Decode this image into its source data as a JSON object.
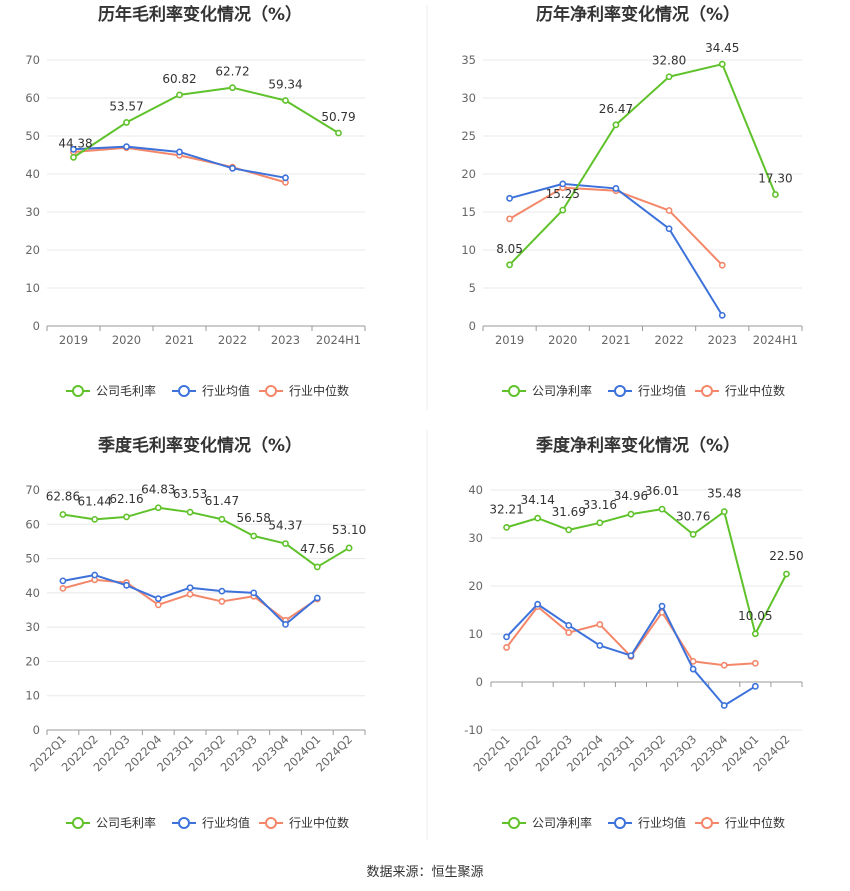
{
  "source": "数据来源：恒生聚源",
  "colors": {
    "company": "#5fc22a",
    "industry_avg": "#3d72db",
    "industry_median": "#f4876a"
  },
  "chart_data": [
    {
      "type": "line",
      "title": "历年毛利率变化情况（%）",
      "categories": [
        "2019",
        "2020",
        "2021",
        "2022",
        "2023",
        "2024H1"
      ],
      "ylim": [
        0,
        70
      ],
      "yticks": [
        0,
        10,
        20,
        30,
        40,
        50,
        60,
        70
      ],
      "grid": true,
      "legend": "bottom",
      "rotate_x": false,
      "series": [
        {
          "name": "公司毛利率",
          "key": "company",
          "values": [
            44.38,
            53.57,
            60.82,
            62.72,
            59.34,
            50.79
          ],
          "labels": [
            "44.38",
            "53.57",
            "60.82",
            "62.72",
            "59.34",
            "50.79"
          ]
        },
        {
          "name": "行业均值",
          "key": "industry_avg",
          "values": [
            46.5,
            47.2,
            45.8,
            41.5,
            39.0,
            null
          ]
        },
        {
          "name": "行业中位数",
          "key": "industry_median",
          "values": [
            45.8,
            46.9,
            44.9,
            41.8,
            37.8,
            null
          ]
        }
      ]
    },
    {
      "type": "line",
      "title": "历年净利率变化情况（%）",
      "categories": [
        "2019",
        "2020",
        "2021",
        "2022",
        "2023",
        "2024H1"
      ],
      "ylim": [
        0,
        35
      ],
      "yticks": [
        0,
        5,
        10,
        15,
        20,
        25,
        30,
        35
      ],
      "grid": true,
      "legend": "bottom",
      "rotate_x": false,
      "series": [
        {
          "name": "公司净利率",
          "key": "company",
          "values": [
            8.05,
            15.25,
            26.47,
            32.8,
            34.45,
            17.3
          ],
          "labels": [
            "8.05",
            "15.25",
            "26.47",
            "32.80",
            "34.45",
            "17.30"
          ]
        },
        {
          "name": "行业均值",
          "key": "industry_avg",
          "values": [
            16.8,
            18.7,
            18.1,
            12.8,
            1.4,
            null
          ]
        },
        {
          "name": "行业中位数",
          "key": "industry_median",
          "values": [
            14.1,
            18.2,
            17.8,
            15.2,
            8.0,
            null
          ]
        }
      ]
    },
    {
      "type": "line",
      "title": "季度毛利率变化情况（%）",
      "categories": [
        "2022Q1",
        "2022Q2",
        "2022Q3",
        "2022Q4",
        "2023Q1",
        "2023Q2",
        "2023Q3",
        "2023Q4",
        "2024Q1",
        "2024Q2"
      ],
      "ylim": [
        0,
        70
      ],
      "yticks": [
        0,
        10,
        20,
        30,
        40,
        50,
        60,
        70
      ],
      "grid": true,
      "legend": "bottom",
      "rotate_x": true,
      "series": [
        {
          "name": "公司毛利率",
          "key": "company",
          "values": [
            62.86,
            61.44,
            62.16,
            64.83,
            63.53,
            61.47,
            56.58,
            54.37,
            47.56,
            53.1
          ],
          "labels": [
            "62.86",
            "61.44",
            "62.16",
            "64.83",
            "63.53",
            "61.47",
            "56.58",
            "54.37",
            "47.56",
            "53.10"
          ]
        },
        {
          "name": "行业均值",
          "key": "industry_avg",
          "values": [
            43.5,
            45.2,
            42.2,
            38.3,
            41.5,
            40.5,
            40.0,
            30.8,
            38.5,
            null
          ]
        },
        {
          "name": "行业中位数",
          "key": "industry_median",
          "values": [
            41.3,
            43.8,
            43.0,
            36.5,
            39.6,
            37.5,
            39.0,
            32.0,
            38.2,
            null
          ]
        }
      ]
    },
    {
      "type": "line",
      "title": "季度净利率变化情况（%）",
      "categories": [
        "2022Q1",
        "2022Q2",
        "2022Q3",
        "2022Q4",
        "2023Q1",
        "2023Q2",
        "2023Q3",
        "2023Q4",
        "2024Q1",
        "2024Q2"
      ],
      "ylim": [
        -10,
        40
      ],
      "yticks": [
        -10,
        0,
        10,
        20,
        30,
        40
      ],
      "grid": true,
      "legend": "bottom",
      "rotate_x": true,
      "series": [
        {
          "name": "公司净利率",
          "key": "company",
          "values": [
            32.21,
            34.14,
            31.69,
            33.16,
            34.96,
            36.01,
            30.76,
            35.48,
            10.05,
            22.5
          ],
          "labels": [
            "32.21",
            "34.14",
            "31.69",
            "33.16",
            "34.96",
            "36.01",
            "30.76",
            "35.48",
            "10.05",
            "22.50"
          ]
        },
        {
          "name": "行业均值",
          "key": "industry_avg",
          "values": [
            9.4,
            16.2,
            11.8,
            7.6,
            5.5,
            15.8,
            2.7,
            -4.9,
            -0.9,
            null
          ]
        },
        {
          "name": "行业中位数",
          "key": "industry_median",
          "values": [
            7.2,
            15.7,
            10.3,
            12.0,
            5.3,
            14.5,
            4.3,
            3.5,
            3.9,
            null
          ]
        }
      ]
    }
  ]
}
